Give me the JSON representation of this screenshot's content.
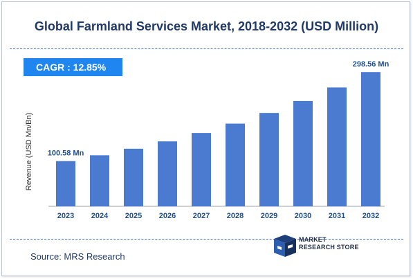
{
  "title": "Global Farmland Services Market, 2018-2032 (USD Million)",
  "cagr_label": "CAGR :  12.85%",
  "source": "Source: MRS Research",
  "logo": {
    "line1": "MARKET",
    "line2": "RESEARCH STORE"
  },
  "colors": {
    "bar": "#4a7bd0",
    "title": "#1f3a68",
    "cagr_bg": "#1e86ee",
    "label": "#1f4e8c"
  },
  "chart_data": {
    "type": "bar",
    "title": "Global Farmland Services Market, 2018-2032 (USD Million)",
    "xlabel": "",
    "ylabel": "Revenue (USD Mn/Bn)",
    "categories": [
      "2023",
      "2024",
      "2025",
      "2026",
      "2027",
      "2028",
      "2029",
      "2030",
      "2031",
      "2032"
    ],
    "values": [
      100.58,
      113.5,
      128.1,
      144.5,
      163.1,
      184.0,
      207.7,
      234.3,
      264.4,
      298.56
    ],
    "data_labels": {
      "first": "100.58 Mn",
      "last": "298.56 Mn"
    },
    "ylim": [
      0,
      305
    ],
    "grid": false,
    "legend": "none"
  }
}
